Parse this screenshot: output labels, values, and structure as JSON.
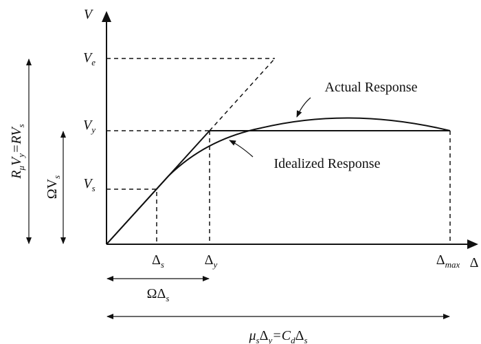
{
  "labels": {
    "y_axis": [
      {
        "text": "V"
      }
    ],
    "x_axis": [
      {
        "text": "Δ"
      }
    ],
    "v_e": [
      {
        "text": "V",
        "sub": "e"
      }
    ],
    "v_y": [
      {
        "text": "V",
        "sub": "y"
      }
    ],
    "v_s": [
      {
        "text": "V",
        "sub": "s"
      }
    ],
    "d_s": [
      {
        "text": "Δ",
        "sub": "s"
      }
    ],
    "d_y": [
      {
        "text": "Δ",
        "sub": "y"
      }
    ],
    "d_max": [
      {
        "text": "Δ",
        "sub": "max"
      }
    ],
    "r_mu": [
      {
        "text": "R",
        "sub": "μ"
      },
      {
        "text": "V",
        "sub": "y"
      },
      {
        "text": "=RV",
        "sub": "s"
      }
    ],
    "omega_v": [
      {
        "text": "ΩV",
        "sub": "s"
      }
    ],
    "omega_d": [
      {
        "text": "ΩΔ",
        "sub": "s"
      }
    ],
    "mu_d": [
      {
        "text": "μ",
        "sub": "s"
      },
      {
        "text": "Δ",
        "sub": "y"
      },
      {
        "text": "=C",
        "sub": "d"
      },
      {
        "text": "Δ",
        "sub": "s"
      }
    ]
  },
  "annotations": {
    "actual": "Actual Response",
    "idealized": "Idealized Response"
  }
}
